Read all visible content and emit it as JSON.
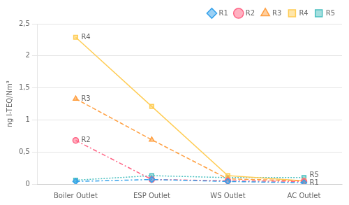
{
  "chart_data": {
    "type": "line",
    "categories": [
      "Boiler Outlet",
      "ESP Outlet",
      "WS Outlet",
      "AC Outlet"
    ],
    "series": [
      {
        "name": "R1",
        "values": [
          0.04,
          0.07,
          0.04,
          0.02
        ],
        "marker": "diamond",
        "line_style": "dashdot"
      },
      {
        "name": "R2",
        "values": [
          0.68,
          0.07,
          0.05,
          0.04
        ],
        "marker": "circle",
        "line_style": "dashdot"
      },
      {
        "name": "R3",
        "values": [
          1.33,
          0.69,
          0.08,
          0.05
        ],
        "marker": "triangle",
        "line_style": "dashed"
      },
      {
        "name": "R4",
        "values": [
          2.29,
          1.21,
          0.13,
          0.05
        ],
        "marker": "square",
        "line_style": "solid"
      },
      {
        "name": "R5",
        "values": [
          0.06,
          0.13,
          0.1,
          0.1
        ],
        "marker": "square",
        "line_style": "dotted"
      }
    ],
    "y_label": "ng I-TEQ/Nm³",
    "ylim": [
      0,
      2.5
    ],
    "yticks": [
      0,
      {
        "value": 0.5,
        "label": "0,5"
      },
      1,
      {
        "value": 1.5,
        "label": "1,5"
      },
      2,
      {
        "value": 2.5,
        "label": "2,5"
      }
    ],
    "grid": "y",
    "legend": "upper right",
    "annotations": [
      {
        "text": "R4",
        "x": "Boiler Outlet",
        "y": 2.29
      },
      {
        "text": "R3",
        "x": "Boiler Outlet",
        "y": 1.33
      },
      {
        "text": "R2",
        "x": "Boiler Outlet",
        "y": 0.68
      },
      {
        "text": "R5",
        "x": "AC Outlet",
        "y": 0.1
      },
      {
        "text": "R1",
        "x": "AC Outlet",
        "y": 0.02
      }
    ]
  }
}
